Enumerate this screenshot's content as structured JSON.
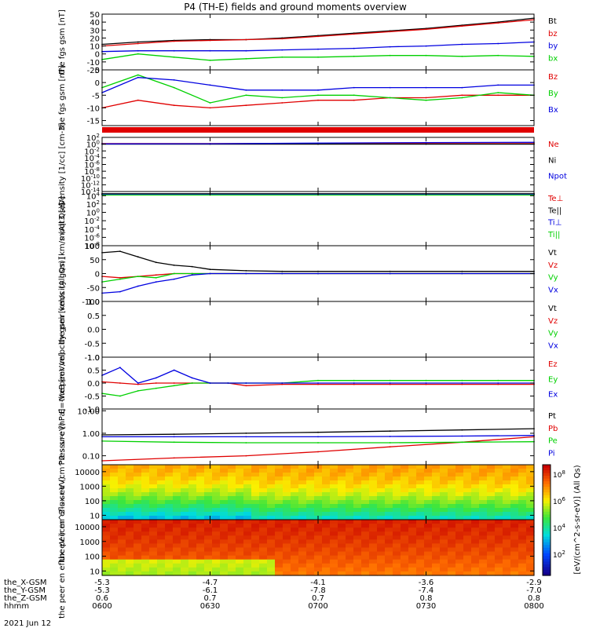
{
  "title": "P4 (TH-E) fields and ground moments overview",
  "colorbar_label": "[eV/(cm^2-s-sr-eV)] (All Qs)",
  "colorbar_ticks": [
    "10^8",
    "10^6",
    "10^4",
    "10^2"
  ],
  "colors": {
    "black": "#000000",
    "red": "#e00000",
    "green": "#00d000",
    "blue": "#0000e0",
    "yellow": "#d8c000"
  },
  "date_label": "2021 Jun 12",
  "chart_data": [
    {
      "type": "line",
      "ylabel": "the fgs gsm [nT]",
      "ylim": [
        -20,
        50
      ],
      "y_log": false,
      "yticks": [
        {
          "v": 50,
          "t": "50"
        },
        {
          "v": 40,
          "t": "40"
        },
        {
          "v": 30,
          "t": "30"
        },
        {
          "v": 20,
          "t": "20"
        },
        {
          "v": 10,
          "t": "10"
        },
        {
          "v": 0,
          "t": "0"
        },
        {
          "v": -10,
          "t": "-10"
        },
        {
          "v": -20,
          "t": "-20"
        }
      ],
      "x": [
        0,
        10,
        20,
        30,
        40,
        50,
        60,
        70,
        80,
        90,
        100,
        110,
        120
      ],
      "series": [
        {
          "name": "Bt",
          "color": "black",
          "values": [
            12,
            15,
            17,
            18,
            18,
            20,
            23,
            26,
            29,
            32,
            36,
            40,
            45
          ]
        },
        {
          "name": "bz",
          "color": "red",
          "values": [
            10,
            13,
            16,
            17,
            18,
            19,
            22,
            25,
            28,
            31,
            35,
            39,
            43
          ]
        },
        {
          "name": "by",
          "color": "blue",
          "values": [
            3,
            4,
            4,
            4,
            4,
            5,
            6,
            7,
            9,
            10,
            12,
            13,
            15
          ]
        },
        {
          "name": "bx",
          "color": "green",
          "values": [
            -7,
            0,
            -4,
            -8,
            -6,
            -4,
            -4,
            -3,
            -2,
            -2,
            -3,
            -2,
            -3
          ]
        }
      ]
    },
    {
      "type": "line",
      "ylabel": "the fgs gsm [nT]",
      "ylim": [
        -17,
        5
      ],
      "y_log": false,
      "yticks": [
        {
          "v": 5,
          "t": "5"
        },
        {
          "v": 0,
          "t": "0"
        },
        {
          "v": -5,
          "t": "-5"
        },
        {
          "v": -10,
          "t": "-10"
        },
        {
          "v": -15,
          "t": "-15"
        }
      ],
      "x": [
        0,
        10,
        20,
        30,
        40,
        50,
        60,
        70,
        80,
        90,
        100,
        110,
        120
      ],
      "series": [
        {
          "name": "Bz",
          "color": "red",
          "values": [
            -10,
            -7,
            -9,
            -10,
            -9,
            -8,
            -7,
            -7,
            -6,
            -6,
            -5,
            -5,
            -5
          ]
        },
        {
          "name": "By",
          "color": "green",
          "values": [
            -2,
            3,
            -2,
            -8,
            -5,
            -6,
            -5,
            -5,
            -6,
            -7,
            -6,
            -4,
            -5
          ]
        },
        {
          "name": "Bx",
          "color": "blue",
          "values": [
            -4,
            2,
            1,
            -1,
            -3,
            -3,
            -3,
            -2,
            -2,
            -2,
            -2,
            -1,
            -1
          ]
        }
      ]
    },
    {
      "type": "line",
      "ylabel": "Density [1/cc] [cm-3]",
      "ylim": [
        1e-14,
        100
      ],
      "y_log": true,
      "yticks": [
        {
          "v": 100,
          "t": "10^2"
        },
        {
          "v": 1,
          "t": "10^0"
        },
        {
          "v": 0.01,
          "t": "10^-2"
        },
        {
          "v": 0.0001,
          "t": "10^-4"
        },
        {
          "v": 1e-06,
          "t": "10^-6"
        },
        {
          "v": 1e-08,
          "t": "10^-8"
        },
        {
          "v": 1e-10,
          "t": "10^-10"
        },
        {
          "v": 1e-12,
          "t": "10^-12"
        },
        {
          "v": 1e-14,
          "t": "10^-14"
        }
      ],
      "x": [
        0,
        30,
        60,
        90,
        120
      ],
      "series": [
        {
          "name": "Ne",
          "color": "red",
          "values": [
            1.5,
            1.5,
            1.5,
            1.5,
            1.5
          ]
        },
        {
          "name": "Ni",
          "color": "black",
          "values": [
            1,
            1,
            1,
            1,
            1
          ]
        },
        {
          "name": "Npot",
          "color": "blue",
          "values": [
            1.2,
            1.3,
            2,
            3,
            3.5
          ]
        }
      ]
    },
    {
      "type": "line",
      "ylabel": "moqt3 [eV]",
      "ylim": [
        1e-08,
        100000
      ],
      "y_log": true,
      "yticks": [
        {
          "v": 10000,
          "t": "10^4"
        },
        {
          "v": 100,
          "t": "10^2"
        },
        {
          "v": 1,
          "t": "10^0"
        },
        {
          "v": 0.01,
          "t": "10^-2"
        },
        {
          "v": 0.0001,
          "t": "10^-4"
        },
        {
          "v": 1e-06,
          "t": "10^-6"
        },
        {
          "v": 1e-08,
          "t": "10^-8"
        }
      ],
      "x": [
        0,
        30,
        60,
        90,
        120
      ],
      "series": [
        {
          "name": "Te⊥",
          "color": "red",
          "values": [
            25000,
            25000,
            25000,
            25000,
            25000
          ]
        },
        {
          "name": "Te||",
          "color": "black",
          "values": [
            30000,
            30000,
            30000,
            30000,
            30000
          ]
        },
        {
          "name": "Ti⊥",
          "color": "blue",
          "values": [
            20000,
            20000,
            20000,
            20000,
            20000
          ]
        },
        {
          "name": "Ti||",
          "color": "green",
          "values": [
            15000,
            15000,
            15000,
            15000,
            15000
          ]
        }
      ]
    },
    {
      "type": "line",
      "ylabel": "the peir velocity gsm [km/s (All Qs)]",
      "ylim": [
        -100,
        100
      ],
      "y_log": false,
      "yticks": [
        {
          "v": 100,
          "t": "100"
        },
        {
          "v": 50,
          "t": "50"
        },
        {
          "v": 0,
          "t": "0"
        },
        {
          "v": -50,
          "t": "-50"
        },
        {
          "v": -100,
          "t": "-100"
        }
      ],
      "x": [
        0,
        5,
        10,
        15,
        20,
        25,
        30,
        40,
        50,
        60,
        80,
        100,
        120
      ],
      "series": [
        {
          "name": "Vt",
          "color": "black",
          "values": [
            75,
            80,
            60,
            40,
            30,
            25,
            15,
            10,
            8,
            8,
            8,
            8,
            8
          ]
        },
        {
          "name": "Vz",
          "color": "red",
          "values": [
            -10,
            -15,
            -10,
            -5,
            0,
            0,
            0,
            0,
            0,
            0,
            0,
            0,
            0
          ]
        },
        {
          "name": "Vy",
          "color": "green",
          "values": [
            -30,
            -20,
            -10,
            -15,
            0,
            0,
            0,
            0,
            0,
            0,
            0,
            0,
            0
          ]
        },
        {
          "name": "Vx",
          "color": "blue",
          "values": [
            -70,
            -65,
            -45,
            -30,
            -20,
            -5,
            0,
            0,
            0,
            0,
            0,
            0,
            0
          ]
        }
      ]
    },
    {
      "type": "line",
      "ylabel": "the peer velocity gsm [km/s (All Qs)]",
      "ylim": [
        -1,
        1
      ],
      "y_log": false,
      "yticks": [
        {
          "v": 1,
          "t": "1.0"
        },
        {
          "v": 0.5,
          "t": "0.5"
        },
        {
          "v": 0,
          "t": "0.0"
        },
        {
          "v": -0.5,
          "t": "-0.5"
        },
        {
          "v": -1,
          "t": "-1.0"
        }
      ],
      "x": [],
      "series": [
        {
          "name": "Vt",
          "color": "black",
          "values": []
        },
        {
          "name": "Vz",
          "color": "red",
          "values": []
        },
        {
          "name": "Vy",
          "color": "green",
          "values": []
        },
        {
          "name": "Vx",
          "color": "blue",
          "values": []
        }
      ]
    },
    {
      "type": "line",
      "ylabel": "E=-VxB [mV/m]",
      "ylim": [
        -1,
        1
      ],
      "y_log": false,
      "yticks": [
        {
          "v": 1,
          "t": "1.0"
        },
        {
          "v": 0.5,
          "t": "0.5"
        },
        {
          "v": 0,
          "t": "0.0"
        },
        {
          "v": -0.5,
          "t": "-0.5"
        },
        {
          "v": -1,
          "t": "-1.0"
        }
      ],
      "x": [
        0,
        5,
        10,
        15,
        20,
        25,
        30,
        35,
        40,
        50,
        60,
        70,
        80,
        90,
        100,
        110,
        120
      ],
      "series": [
        {
          "name": "Ez",
          "color": "red",
          "values": [
            0.05,
            0,
            -0.05,
            0,
            0,
            0,
            0,
            0,
            -0.1,
            -0.05,
            -0.05,
            -0.05,
            -0.05,
            -0.05,
            -0.05,
            -0.05,
            -0.05
          ]
        },
        {
          "name": "Ey",
          "color": "green",
          "values": [
            -0.4,
            -0.5,
            -0.3,
            -0.2,
            -0.1,
            0,
            0,
            0,
            0,
            0,
            0.1,
            0.1,
            0.1,
            0.1,
            0.1,
            0.1,
            0.1
          ]
        },
        {
          "name": "Ex",
          "color": "blue",
          "values": [
            0.3,
            0.6,
            0,
            0.2,
            0.5,
            0.2,
            0,
            0,
            0,
            0,
            0,
            0,
            0,
            0,
            0,
            0,
            0
          ]
        }
      ]
    },
    {
      "type": "line",
      "ylabel": "Pressure [nPa]",
      "ylim": [
        0.04,
        12
      ],
      "y_log": true,
      "yticks": [
        {
          "v": 10,
          "t": "10.00"
        },
        {
          "v": 1,
          "t": "1.00"
        },
        {
          "v": 0.1,
          "t": "0.10"
        }
      ],
      "x": [
        0,
        20,
        40,
        60,
        80,
        100,
        120
      ],
      "series": [
        {
          "name": "Pt",
          "color": "black",
          "values": [
            0.85,
            0.9,
            1.0,
            1.1,
            1.25,
            1.4,
            1.6
          ]
        },
        {
          "name": "Pb",
          "color": "red",
          "values": [
            0.06,
            0.08,
            0.1,
            0.15,
            0.25,
            0.4,
            0.7
          ]
        },
        {
          "name": "Pe",
          "color": "green",
          "values": [
            0.45,
            0.4,
            0.38,
            0.38,
            0.38,
            0.4,
            0.42
          ]
        },
        {
          "name": "Pi",
          "color": "blue",
          "values": [
            0.7,
            0.7,
            0.7,
            0.7,
            0.72,
            0.75,
            0.8
          ]
        }
      ]
    },
    {
      "type": "heatmap",
      "ylabel": "the peir en eflux eV (cm^2-s-sr-eV)",
      "ylim": [
        5,
        30000
      ],
      "y_log": true,
      "yticks": [
        {
          "v": 10000,
          "t": "10000"
        },
        {
          "v": 1000,
          "t": "1000"
        },
        {
          "v": 100,
          "t": "100"
        },
        {
          "v": 10,
          "t": "10"
        }
      ],
      "legend": [],
      "series": []
    },
    {
      "type": "heatmap",
      "ylabel": "the peer en eflux eV (cm^2-s-sr-eV)",
      "ylim": [
        5,
        30000
      ],
      "y_log": true,
      "yticks": [
        {
          "v": 10000,
          "t": "10000"
        },
        {
          "v": 1000,
          "t": "1000"
        },
        {
          "v": 100,
          "t": "100"
        },
        {
          "v": 10,
          "t": "10"
        }
      ],
      "legend": [],
      "series": []
    }
  ],
  "xaxis": {
    "range": [
      0,
      120
    ],
    "rows": [
      "the_X-GSM",
      "the_Y-GSM",
      "the_Z-GSM",
      "hhmm"
    ],
    "ticks": [
      {
        "x": 0,
        "vals": [
          "-5.3",
          "-5.3",
          "0.6",
          "0600"
        ]
      },
      {
        "x": 30,
        "vals": [
          "-4.7",
          "-6.1",
          "0.7",
          "0630"
        ]
      },
      {
        "x": 60,
        "vals": [
          "-4.1",
          "-7.8",
          "0.7",
          "0700"
        ]
      },
      {
        "x": 90,
        "vals": [
          "-3.6",
          "-7.4",
          "0.8",
          "0730"
        ]
      },
      {
        "x": 120,
        "vals": [
          "-2.9",
          "-7.0",
          "0.8",
          "0800"
        ]
      }
    ]
  }
}
